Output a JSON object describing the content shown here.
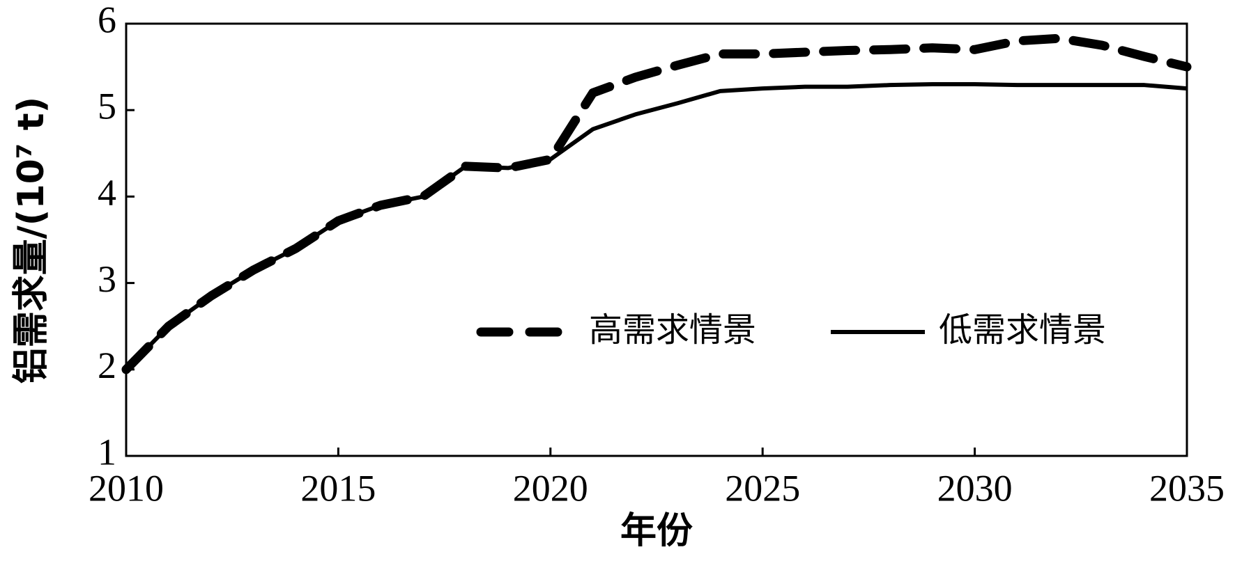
{
  "chart_data": {
    "type": "line",
    "xlabel": "年份",
    "ylabel": "铝需求量/(10⁷ t)",
    "x": [
      2010,
      2011,
      2012,
      2013,
      2014,
      2015,
      2016,
      2017,
      2018,
      2019,
      2020,
      2021,
      2022,
      2023,
      2024,
      2025,
      2026,
      2027,
      2028,
      2029,
      2030,
      2031,
      2032,
      2033,
      2034,
      2035
    ],
    "series": [
      {
        "name": "高需求情景",
        "color": "#000000",
        "dashed": true,
        "values": [
          2.0,
          2.5,
          2.85,
          3.15,
          3.4,
          3.72,
          3.9,
          4.0,
          4.35,
          4.33,
          4.43,
          5.2,
          5.38,
          5.52,
          5.65,
          5.65,
          5.67,
          5.69,
          5.7,
          5.72,
          5.7,
          5.8,
          5.83,
          5.75,
          5.62,
          5.5
        ]
      },
      {
        "name": "低需求情景",
        "color": "#000000",
        "dashed": false,
        "values": [
          2.0,
          2.5,
          2.85,
          3.15,
          3.4,
          3.72,
          3.9,
          4.0,
          4.35,
          4.33,
          4.43,
          4.78,
          4.95,
          5.08,
          5.22,
          5.25,
          5.27,
          5.27,
          5.29,
          5.3,
          5.3,
          5.29,
          5.29,
          5.29,
          5.29,
          5.25
        ]
      }
    ],
    "xlim": [
      2010,
      2035
    ],
    "xticks": [
      2010,
      2015,
      2020,
      2025,
      2030,
      2035
    ],
    "ylim": [
      1,
      6
    ],
    "yticks": [
      1,
      2,
      3,
      4,
      5,
      6
    ],
    "grid": false,
    "legend": "right"
  }
}
